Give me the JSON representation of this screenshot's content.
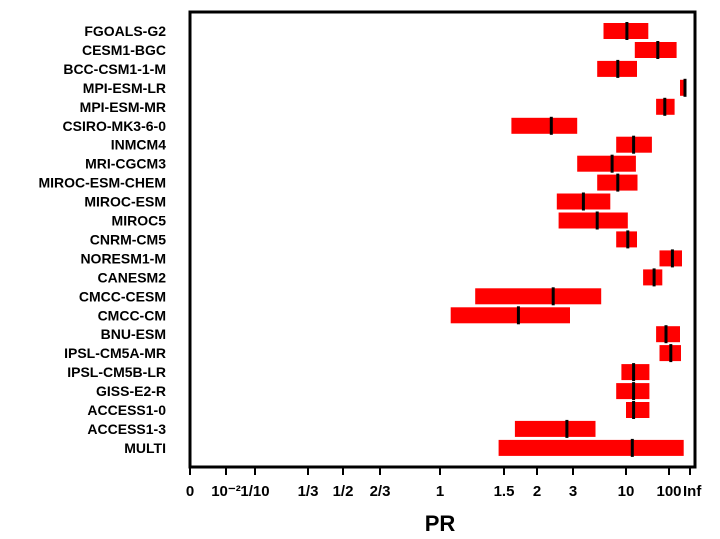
{
  "chart_data": {
    "type": "interval",
    "title": "",
    "xlabel": "PR",
    "ylabel": "",
    "x_scale": "probability-ratio (nonlinear, 0 to Inf)",
    "grid": false,
    "legend": "none",
    "colors": {
      "interval": "#ff0000",
      "median": "#000000",
      "frame": "#000000"
    },
    "x_ticks": [
      {
        "value": 0,
        "label": "0"
      },
      {
        "value": 0.01,
        "label": "10⁻²"
      },
      {
        "value": 0.1,
        "label": "1/10"
      },
      {
        "value": 0.3333,
        "label": "1/3"
      },
      {
        "value": 0.5,
        "label": "1/2"
      },
      {
        "value": 0.6667,
        "label": "2/3"
      },
      {
        "value": 1,
        "label": "1"
      },
      {
        "value": 1.5,
        "label": "1.5"
      },
      {
        "value": 2,
        "label": "2"
      },
      {
        "value": 3,
        "label": "3"
      },
      {
        "value": 10,
        "label": "10"
      },
      {
        "value": 100,
        "label": "100"
      },
      {
        "value": "Inf",
        "label": "Inf"
      }
    ],
    "series": [
      {
        "name": "FGOALS-G2",
        "low": 6.0,
        "median": 10.5,
        "high": 33
      },
      {
        "name": "CESM1-BGC",
        "low": 16,
        "median": 55,
        "high": 150
      },
      {
        "name": "BCC-CSM1-1-M",
        "low": 5.2,
        "median": 8.3,
        "high": 18
      },
      {
        "name": "MPI-ESM-LR",
        "low": 180,
        "median": 240,
        "high": 360
      },
      {
        "name": "MPI-ESM-MR",
        "low": 50,
        "median": 80,
        "high": 135
      },
      {
        "name": "CSIRO-MK3-6-0",
        "low": 1.6,
        "median": 2.35,
        "high": 3.3
      },
      {
        "name": "INMCM4",
        "low": 8.0,
        "median": 15,
        "high": 40
      },
      {
        "name": "MRI-CGCM3",
        "low": 3.3,
        "median": 7.3,
        "high": 17
      },
      {
        "name": "MIROC-ESM-CHEM",
        "low": 5.2,
        "median": 8.3,
        "high": 18.5
      },
      {
        "name": "MIROC-ESM",
        "low": 2.5,
        "median": 3.8,
        "high": 7.0
      },
      {
        "name": "MIROC5",
        "low": 2.55,
        "median": 5.2,
        "high": 11
      },
      {
        "name": "CNRM-CM5",
        "low": 8.0,
        "median": 11,
        "high": 18
      },
      {
        "name": "NORESM1-M",
        "low": 60,
        "median": 120,
        "high": 200
      },
      {
        "name": "CANESM2",
        "low": 25,
        "median": 45,
        "high": 70
      },
      {
        "name": "CMCC-CESM",
        "low": 1.25,
        "median": 2.4,
        "high": 5.7
      },
      {
        "name": "CMCC-CM",
        "low": 1.07,
        "median": 1.7,
        "high": 2.9
      },
      {
        "name": "BNU-ESM",
        "low": 50,
        "median": 85,
        "high": 180
      },
      {
        "name": "IPSL-CM5A-MR",
        "low": 60,
        "median": 110,
        "high": 190
      },
      {
        "name": "IPSL-CM5B-LR",
        "low": 9.0,
        "median": 15,
        "high": 35
      },
      {
        "name": "GISS-E2-R",
        "low": 8.0,
        "median": 15,
        "high": 35
      },
      {
        "name": "ACCESS1-0",
        "low": 10,
        "median": 15,
        "high": 35
      },
      {
        "name": "ACCESS1-3",
        "low": 1.65,
        "median": 2.8,
        "high": 5.0
      },
      {
        "name": "MULTI",
        "low": 1.45,
        "median": 14,
        "high": 220
      }
    ]
  }
}
